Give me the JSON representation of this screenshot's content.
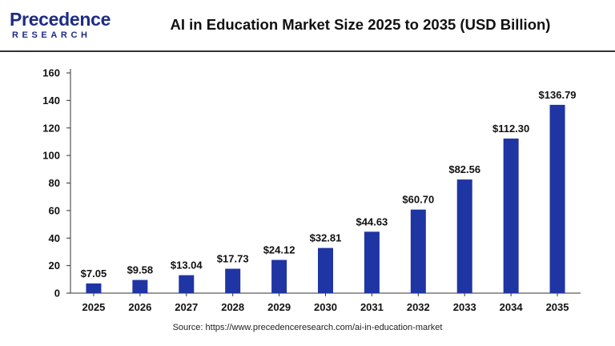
{
  "header": {
    "brand_name": "Precedence",
    "brand_sub": "RESEARCH",
    "title": "AI in Education Market Size 2025 to 2035 (USD Billion)"
  },
  "footer": {
    "source": "Source: https://www.precedenceresearch.com/ai-in-education-market"
  },
  "colors": {
    "bar": "#1f35a3",
    "brand": "#1d2c86",
    "axis": "#333333"
  },
  "chart_data": {
    "type": "bar",
    "title": "AI in Education Market Size 2025 to 2035 (USD Billion)",
    "xlabel": "",
    "ylabel": "",
    "categories": [
      "2025",
      "2026",
      "2027",
      "2028",
      "2029",
      "2030",
      "2031",
      "2032",
      "2033",
      "2034",
      "2035"
    ],
    "values": [
      7.05,
      9.58,
      13.04,
      17.73,
      24.12,
      32.81,
      44.63,
      60.7,
      82.56,
      112.3,
      136.79
    ],
    "data_labels": [
      "$7.05",
      "$9.58",
      "$13.04",
      "$17.73",
      "$24.12",
      "$32.81",
      "$44.63",
      "$60.70",
      "$82.56",
      "$112.30",
      "$136.79"
    ],
    "ylim": [
      0,
      160
    ],
    "yticks": [
      0,
      20,
      40,
      60,
      80,
      100,
      120,
      140,
      160
    ],
    "grid": false,
    "legend": "none"
  }
}
